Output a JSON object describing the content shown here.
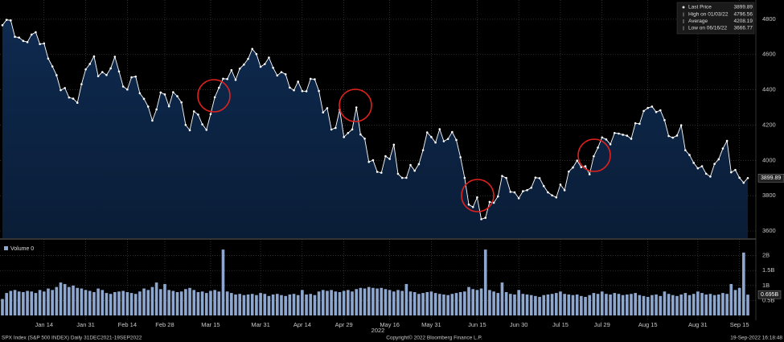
{
  "chart_data": [
    {
      "type": "line",
      "categories": [
        null,
        null,
        null,
        null,
        null,
        null,
        null,
        null,
        null,
        null,
        "Jan 14",
        null,
        null,
        null,
        null,
        null,
        null,
        null,
        null,
        null,
        "Jan 31",
        null,
        null,
        null,
        null,
        null,
        null,
        null,
        null,
        null,
        "Feb 14",
        null,
        null,
        null,
        null,
        null,
        null,
        null,
        null,
        "Feb 28",
        null,
        null,
        null,
        null,
        null,
        null,
        null,
        null,
        null,
        null,
        "Mar 15",
        null,
        null,
        null,
        null,
        null,
        null,
        null,
        null,
        null,
        null,
        null,
        "Mar 31",
        null,
        null,
        null,
        null,
        null,
        null,
        null,
        null,
        null,
        "Apr 14",
        null,
        null,
        null,
        null,
        null,
        null,
        null,
        null,
        null,
        "Apr 29",
        null,
        null,
        null,
        null,
        null,
        null,
        null,
        null,
        null,
        null,
        "May 16",
        null,
        null,
        null,
        null,
        null,
        null,
        null,
        null,
        null,
        "May 31",
        null,
        null,
        null,
        null,
        null,
        null,
        null,
        null,
        null,
        null,
        "Jun 15",
        null,
        null,
        null,
        null,
        null,
        null,
        null,
        null,
        null,
        "Jun 30",
        null,
        null,
        null,
        null,
        null,
        null,
        null,
        null,
        null,
        "Jul 15",
        null,
        null,
        null,
        null,
        null,
        null,
        null,
        null,
        null,
        "Jul 29",
        null,
        null,
        null,
        null,
        null,
        null,
        null,
        null,
        null,
        null,
        "Aug 15",
        null,
        null,
        null,
        null,
        null,
        null,
        null,
        null,
        null,
        null,
        null,
        "Aug 31",
        null,
        null,
        null,
        null,
        null,
        null,
        null,
        null,
        null,
        "Sep 15",
        null,
        null
      ],
      "series": [
        {
          "name": "Last Price",
          "color": "#ffffff",
          "values": [
            4766.18,
            4796.56,
            4793.54,
            4700.58,
            4696.05,
            4677.03,
            4670.29,
            4713.07,
            4726.35,
            4659.03,
            4662.85,
            4577.11,
            4532.76,
            4482.73,
            4397.94,
            4410.13,
            4356.45,
            4349.93,
            4326.51,
            4431.85,
            4515.55,
            4546.54,
            4589.38,
            4477.44,
            4500.53,
            4483.87,
            4521.54,
            4587.18,
            4504.08,
            4418.64,
            4401.67,
            4471.07,
            4475.01,
            4380.26,
            4348.87,
            4304.76,
            4225.5,
            4288.7,
            4384.65,
            4373.94,
            4306.26,
            4386.54,
            4363.49,
            4328.87,
            4201.09,
            4170.7,
            4277.88,
            4259.52,
            4204.31,
            4173.11,
            4262.45,
            4357.86,
            4411.67,
            4463.12,
            4461.18,
            4511.61,
            4456.24,
            4520.16,
            4543.06,
            4575.52,
            4631.6,
            4602.45,
            4530.41,
            4545.86,
            4582.64,
            4525.12,
            4481.15,
            4500.21,
            4488.28,
            4412.53,
            4397.45,
            4446.59,
            4392.59,
            4391.69,
            4462.21,
            4459.45,
            4393.66,
            4271.78,
            4296.12,
            4175.2,
            4183.96,
            4287.5,
            4131.93,
            4155.38,
            4175.48,
            4300.17,
            4146.87,
            4123.34,
            3991.24,
            4001.05,
            3935.18,
            3930.08,
            4023.89,
            4008.01,
            4088.85,
            3923.68,
            3900.79,
            3901.36,
            3973.75,
            3941.48,
            3978.73,
            4057.84,
            4158.24,
            4132.15,
            4101.23,
            4176.82,
            4108.54,
            4121.43,
            4160.68,
            4115.77,
            4017.82,
            3900.86,
            3749.63,
            3735.48,
            3789.99,
            3666.77,
            3674.84,
            3764.79,
            3759.89,
            3795.73,
            3911.74,
            3900.11,
            3821.55,
            3818.83,
            3785.38,
            3825.33,
            3831.39,
            3845.08,
            3902.62,
            3899.38,
            3854.43,
            3818.8,
            3801.78,
            3790.38,
            3863.16,
            3830.85,
            3936.69,
            3959.9,
            3998.95,
            3961.63,
            3966.84,
            3921.05,
            4023.61,
            4072.43,
            4130.29,
            4118.63,
            4091.19,
            4155.17,
            4151.94,
            4145.19,
            4140.06,
            4122.47,
            4210.24,
            4207.27,
            4280.15,
            4297.14,
            4305.2,
            4274.04,
            4283.74,
            4228.48,
            4137.99,
            4128.73,
            4140.77,
            4199.12,
            4057.66,
            4030.61,
            3986.16,
            3955.0,
            3966.85,
            3924.26,
            3908.19,
            3979.87,
            4006.18,
            4067.36,
            4110.41,
            3932.69,
            3946.01,
            3901.35,
            3873.33,
            3899.89
          ]
        }
      ],
      "ylim": [
        3559,
        4909
      ],
      "yticks": [
        3600,
        3800,
        4000,
        4200,
        4400,
        4600,
        4800
      ],
      "grid": true,
      "legend": [
        {
          "label": "High on 01/03/22",
          "value": 4796.56
        },
        {
          "label": "Average",
          "value": 4208.19
        },
        {
          "label": "Low on 06/16/22",
          "value": 3666.77
        }
      ],
      "year_label": "2022"
    },
    {
      "type": "bar",
      "series": [
        {
          "name": "Volume 0",
          "color": "#8ea7cf",
          "values": [
            0.55,
            0.75,
            0.82,
            0.85,
            0.8,
            0.78,
            0.82,
            0.8,
            0.75,
            0.85,
            0.8,
            0.9,
            0.85,
            0.95,
            1.1,
            1.05,
            0.95,
            1.0,
            0.92,
            0.9,
            0.85,
            0.82,
            0.78,
            0.9,
            0.85,
            0.75,
            0.72,
            0.78,
            0.8,
            0.82,
            0.78,
            0.75,
            0.72,
            0.8,
            0.9,
            0.85,
            0.95,
            1.1,
            0.88,
            1.05,
            0.85,
            0.82,
            0.78,
            0.8,
            0.88,
            0.92,
            0.85,
            0.78,
            0.8,
            0.75,
            0.82,
            0.85,
            0.8,
            2.2,
            0.8,
            0.75,
            0.7,
            0.72,
            0.68,
            0.7,
            0.72,
            0.68,
            0.75,
            0.72,
            0.65,
            0.7,
            0.72,
            0.68,
            0.65,
            0.7,
            0.72,
            0.68,
            0.85,
            0.7,
            0.72,
            0.68,
            0.8,
            0.85,
            0.82,
            0.85,
            0.8,
            0.78,
            0.82,
            0.85,
            0.8,
            0.88,
            0.92,
            0.9,
            0.95,
            0.92,
            0.9,
            0.92,
            0.88,
            0.85,
            0.8,
            0.85,
            0.82,
            1.05,
            0.8,
            0.78,
            0.72,
            0.75,
            0.78,
            0.8,
            0.75,
            0.72,
            0.7,
            0.68,
            0.72,
            0.75,
            0.78,
            0.8,
            0.95,
            0.88,
            0.85,
            0.9,
            2.2,
            0.85,
            0.8,
            0.75,
            1.1,
            0.78,
            0.72,
            0.7,
            0.85,
            0.72,
            0.7,
            0.68,
            0.65,
            0.62,
            0.68,
            0.7,
            0.72,
            0.75,
            0.8,
            0.72,
            0.7,
            0.68,
            0.7,
            0.65,
            0.62,
            0.68,
            0.75,
            0.72,
            0.8,
            0.72,
            0.7,
            0.75,
            0.72,
            0.68,
            0.7,
            0.72,
            0.75,
            0.68,
            0.65,
            0.62,
            0.68,
            0.7,
            0.65,
            0.8,
            0.72,
            0.68,
            0.65,
            0.7,
            0.75,
            0.68,
            0.72,
            0.8,
            0.75,
            0.7,
            0.72,
            0.68,
            0.7,
            0.75,
            0.72,
            1.05,
            0.85,
            0.92,
            2.1,
            0.695
          ],
          "value_labels": [
            null,
            null,
            null,
            null,
            null,
            null,
            null,
            null,
            null,
            null,
            null,
            null,
            null,
            null,
            null,
            null,
            null,
            null,
            null,
            null,
            null,
            null,
            null,
            null,
            null,
            null,
            null,
            null,
            null,
            null,
            null,
            null,
            null,
            null,
            null,
            null,
            null,
            null,
            null,
            null,
            null,
            null,
            null,
            null,
            null,
            null,
            null,
            null,
            null,
            null,
            null,
            null,
            null,
            null,
            null,
            null,
            null,
            null,
            null,
            null,
            null,
            null,
            null,
            null,
            null,
            null,
            null,
            null,
            null,
            null,
            null,
            null,
            null,
            null,
            null,
            null,
            null,
            null,
            null,
            null,
            null,
            null,
            null,
            null,
            null,
            null,
            null,
            null,
            null,
            null,
            null,
            null,
            null,
            null,
            null,
            null,
            null,
            null,
            null,
            null,
            null,
            null,
            null,
            null,
            null,
            null,
            null,
            null,
            null,
            null,
            null,
            null,
            null,
            null,
            null,
            null,
            null,
            null,
            null,
            null,
            null,
            null,
            null,
            null,
            null,
            null,
            null,
            null,
            null,
            null,
            null,
            null,
            null,
            null,
            null,
            null,
            null,
            null,
            null,
            null,
            null,
            null,
            null,
            null,
            null,
            null,
            null,
            null,
            null,
            null,
            null,
            null,
            null,
            null,
            null,
            null,
            null,
            null,
            null,
            null,
            null,
            null,
            null,
            null,
            null,
            null,
            null,
            null,
            null,
            null,
            null,
            null,
            null,
            null,
            null,
            null,
            null,
            null,
            null,
            "0.695B"
          ]
        }
      ],
      "ylim": [
        0,
        2.5
      ],
      "yticks": [
        {
          "value": 0.5,
          "label": "0.5B"
        },
        {
          "value": 1,
          "label": "1B"
        },
        {
          "value": 1.5,
          "label": "1.5B"
        },
        {
          "value": 2,
          "label": "2B"
        }
      ],
      "grid": true
    }
  ],
  "footer": {
    "left": "SPX Index (S&P 500 INDEX)  Daily 31DEC2021-19SEP2022",
    "center": "Copyright© 2022 Bloomberg Finance L.P.",
    "right": "19-Sep-2022 16:18:48"
  }
}
